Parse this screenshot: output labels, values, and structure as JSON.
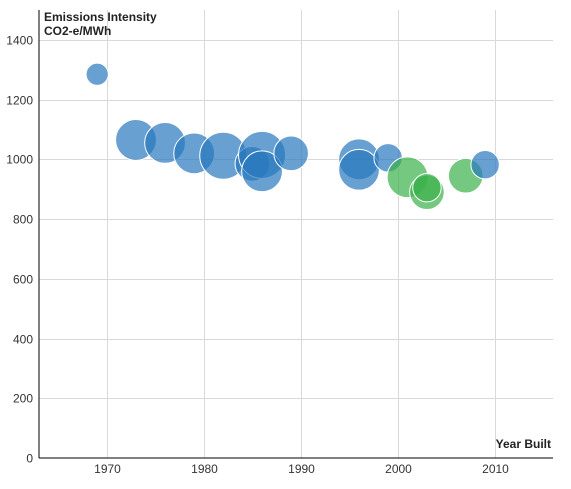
{
  "chart_data": {
    "type": "scatter",
    "variant": "bubble",
    "title": "",
    "ylabel_line1": "Emissions Intensity",
    "ylabel_line2": "CO2-e/MWh",
    "xlabel": "Year Built",
    "xlim": [
      1963,
      2016
    ],
    "ylim": [
      0,
      1500
    ],
    "xticks": [
      1970,
      1980,
      1990,
      2000,
      2010
    ],
    "yticks": [
      0,
      200,
      400,
      600,
      800,
      1000,
      1200,
      1400
    ],
    "grid": true,
    "legend": "none",
    "colors": {
      "blue": "#2878bd",
      "green": "#3bb04a"
    },
    "points": [
      {
        "x": 1969,
        "y": 1285,
        "size": 1,
        "color": "blue"
      },
      {
        "x": 1973,
        "y": 1065,
        "size": 4,
        "color": "blue"
      },
      {
        "x": 1976,
        "y": 1055,
        "size": 4,
        "color": "blue"
      },
      {
        "x": 1979,
        "y": 1020,
        "size": 4,
        "color": "blue"
      },
      {
        "x": 1982,
        "y": 1012,
        "size": 5,
        "color": "blue"
      },
      {
        "x": 1985,
        "y": 985,
        "size": 3,
        "color": "blue"
      },
      {
        "x": 1986,
        "y": 1015,
        "size": 5,
        "color": "blue"
      },
      {
        "x": 1986,
        "y": 960,
        "size": 4,
        "color": "blue"
      },
      {
        "x": 1989,
        "y": 1020,
        "size": 3,
        "color": "blue"
      },
      {
        "x": 1996,
        "y": 1000,
        "size": 4,
        "color": "blue"
      },
      {
        "x": 1996,
        "y": 965,
        "size": 4,
        "color": "blue"
      },
      {
        "x": 1999,
        "y": 1005,
        "size": 2,
        "color": "blue"
      },
      {
        "x": 2001,
        "y": 940,
        "size": 4,
        "color": "green"
      },
      {
        "x": 2003,
        "y": 890,
        "size": 3,
        "color": "green"
      },
      {
        "x": 2003,
        "y": 905,
        "size": 2,
        "color": "green"
      },
      {
        "x": 2007,
        "y": 945,
        "size": 3,
        "color": "green"
      },
      {
        "x": 2009,
        "y": 982,
        "size": 2,
        "color": "blue"
      }
    ]
  }
}
